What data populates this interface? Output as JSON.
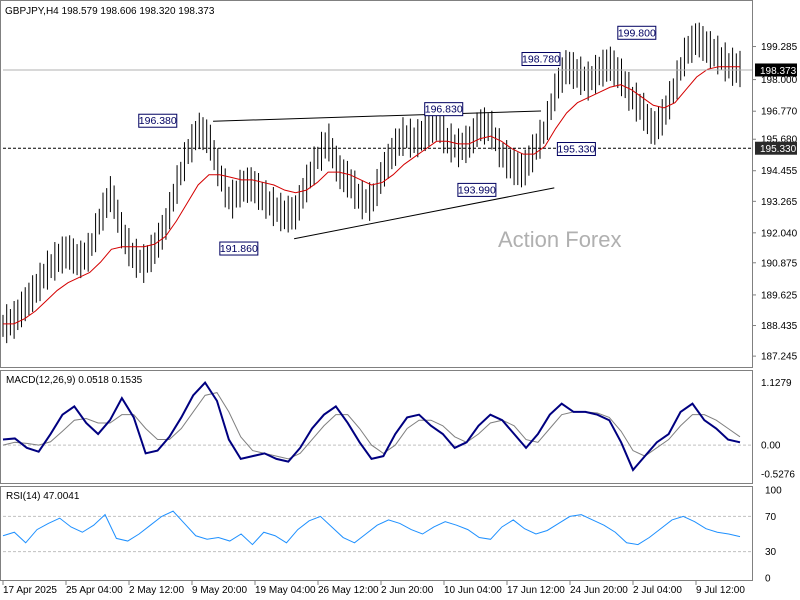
{
  "chart_data": [
    {
      "type": "candlestick",
      "title": "GBPJPY,H4  198.579 198.606 198.320 198.373",
      "watermark": "Action Forex",
      "ylim": [
        186.9,
        200.9
      ],
      "yticks": [
        "199.285",
        "198.000",
        "196.770",
        "195.680",
        "194.455",
        "193.265",
        "192.040",
        "190.875",
        "189.625",
        "188.435",
        "187.245"
      ],
      "current_price": "198.373",
      "support_level": "195.330",
      "annotations": [
        "199.800",
        "198.780",
        "196.830",
        "196.380",
        "195.330",
        "193.990",
        "191.860"
      ],
      "series": [
        {
          "name": "Price",
          "color": "#000000",
          "values": [
            188.4,
            188.6,
            189.2,
            189.8,
            190.5,
            191.0,
            191.3,
            190.9,
            191.3,
            192.6,
            193.6,
            192.0,
            191.1,
            190.8,
            191.4,
            192.3,
            193.8,
            195.1,
            196.0,
            195.7,
            194.3,
            193.2,
            193.8,
            193.9,
            193.4,
            193.0,
            192.7,
            192.8,
            193.9,
            194.9,
            195.6,
            194.4,
            194.0,
            193.3,
            193.2,
            194.3,
            195.2,
            195.8,
            195.6,
            195.9,
            196.3,
            195.6,
            195.3,
            195.5,
            196.2,
            196.1,
            195.1,
            194.6,
            194.4,
            195.2,
            196.0,
            197.6,
            198.5,
            198.2,
            197.9,
            198.3,
            198.6,
            198.1,
            197.3,
            196.8,
            196.0,
            196.6,
            197.7,
            199.0,
            199.6,
            199.2,
            198.9,
            198.5,
            198.373
          ]
        },
        {
          "name": "MA",
          "color": "#d40000",
          "values": [
            188.5,
            188.5,
            188.7,
            189.0,
            189.4,
            189.8,
            190.1,
            190.3,
            190.5,
            190.9,
            191.4,
            191.5,
            191.5,
            191.5,
            191.6,
            191.9,
            192.5,
            193.2,
            193.9,
            194.3,
            194.3,
            194.2,
            194.1,
            194.1,
            194.0,
            193.9,
            193.7,
            193.6,
            193.7,
            194.0,
            194.4,
            194.4,
            194.3,
            194.1,
            193.9,
            194.0,
            194.3,
            194.7,
            195.0,
            195.3,
            195.6,
            195.6,
            195.5,
            195.5,
            195.7,
            195.8,
            195.6,
            195.3,
            195.1,
            195.1,
            195.4,
            196.1,
            196.7,
            197.1,
            197.3,
            197.5,
            197.7,
            197.8,
            197.6,
            197.3,
            197.0,
            196.9,
            197.1,
            197.6,
            198.1,
            198.4,
            198.5,
            198.5,
            198.5
          ]
        }
      ]
    },
    {
      "type": "line",
      "title": "MACD(12,26,9) 0.0518 0.1535",
      "yticks": [
        "1.1279",
        "0.00",
        "-0.5276"
      ],
      "ylim": [
        -0.65,
        1.25
      ],
      "series": [
        {
          "name": "MACD",
          "color": "#000080",
          "values": [
            0.1,
            0.12,
            -0.05,
            -0.12,
            0.2,
            0.55,
            0.7,
            0.4,
            0.2,
            0.45,
            0.85,
            0.5,
            -0.15,
            -0.1,
            0.15,
            0.5,
            0.9,
            1.13,
            0.8,
            0.1,
            -0.25,
            -0.2,
            -0.15,
            -0.25,
            -0.3,
            -0.05,
            0.3,
            0.55,
            0.7,
            0.4,
            0.05,
            -0.25,
            -0.2,
            0.2,
            0.5,
            0.55,
            0.35,
            0.2,
            -0.05,
            0.05,
            0.35,
            0.55,
            0.45,
            0.2,
            -0.05,
            0.2,
            0.55,
            0.75,
            0.6,
            0.6,
            0.55,
            0.45,
            0.05,
            -0.45,
            -0.2,
            0.05,
            0.2,
            0.6,
            0.75,
            0.45,
            0.3,
            0.1,
            0.05
          ]
        },
        {
          "name": "Signal",
          "color": "#808080",
          "values": [
            0.0,
            0.05,
            0.03,
            0.0,
            0.06,
            0.25,
            0.45,
            0.48,
            0.4,
            0.4,
            0.55,
            0.55,
            0.3,
            0.1,
            0.1,
            0.3,
            0.6,
            0.9,
            0.95,
            0.6,
            0.15,
            -0.1,
            -0.15,
            -0.2,
            -0.25,
            -0.15,
            0.1,
            0.35,
            0.55,
            0.55,
            0.3,
            0.0,
            -0.15,
            0.0,
            0.3,
            0.45,
            0.45,
            0.35,
            0.15,
            0.05,
            0.2,
            0.4,
            0.45,
            0.35,
            0.1,
            0.05,
            0.3,
            0.55,
            0.6,
            0.6,
            0.58,
            0.5,
            0.25,
            -0.1,
            -0.2,
            -0.05,
            0.1,
            0.35,
            0.55,
            0.55,
            0.45,
            0.3,
            0.15
          ]
        }
      ]
    },
    {
      "type": "line",
      "title": "RSI(14) 47.0041",
      "yticks": [
        "100",
        "70",
        "30",
        "0"
      ],
      "ylim": [
        0,
        100
      ],
      "series": [
        {
          "name": "RSI",
          "color": "#1e90ff",
          "values": [
            48,
            52,
            40,
            55,
            62,
            68,
            58,
            52,
            60,
            72,
            45,
            42,
            50,
            60,
            70,
            76,
            62,
            48,
            44,
            46,
            42,
            50,
            38,
            52,
            48,
            40,
            55,
            65,
            70,
            58,
            46,
            40,
            50,
            60,
            66,
            62,
            55,
            50,
            58,
            64,
            60,
            55,
            46,
            44,
            58,
            66,
            56,
            50,
            54,
            62,
            70,
            72,
            66,
            60,
            52,
            40,
            38,
            46,
            56,
            66,
            70,
            64,
            56,
            52,
            50,
            47
          ]
        }
      ]
    }
  ],
  "x_axis": {
    "labels": [
      "17 Apr 2025",
      "25 Apr 04:00",
      "2 May 12:00",
      "9 May 20:00",
      "19 May 04:00",
      "26 May 12:00",
      "2 Jun 20:00",
      "10 Jun 04:00",
      "17 Jun 12:00",
      "24 Jun 20:00",
      "2 Jul 04:00",
      "9 Jul 12:00"
    ]
  },
  "colors": {
    "grid_border": "#808080",
    "support_line": "#000000",
    "current_box_bg": "#000000",
    "current_box_text": "#ffffff"
  }
}
